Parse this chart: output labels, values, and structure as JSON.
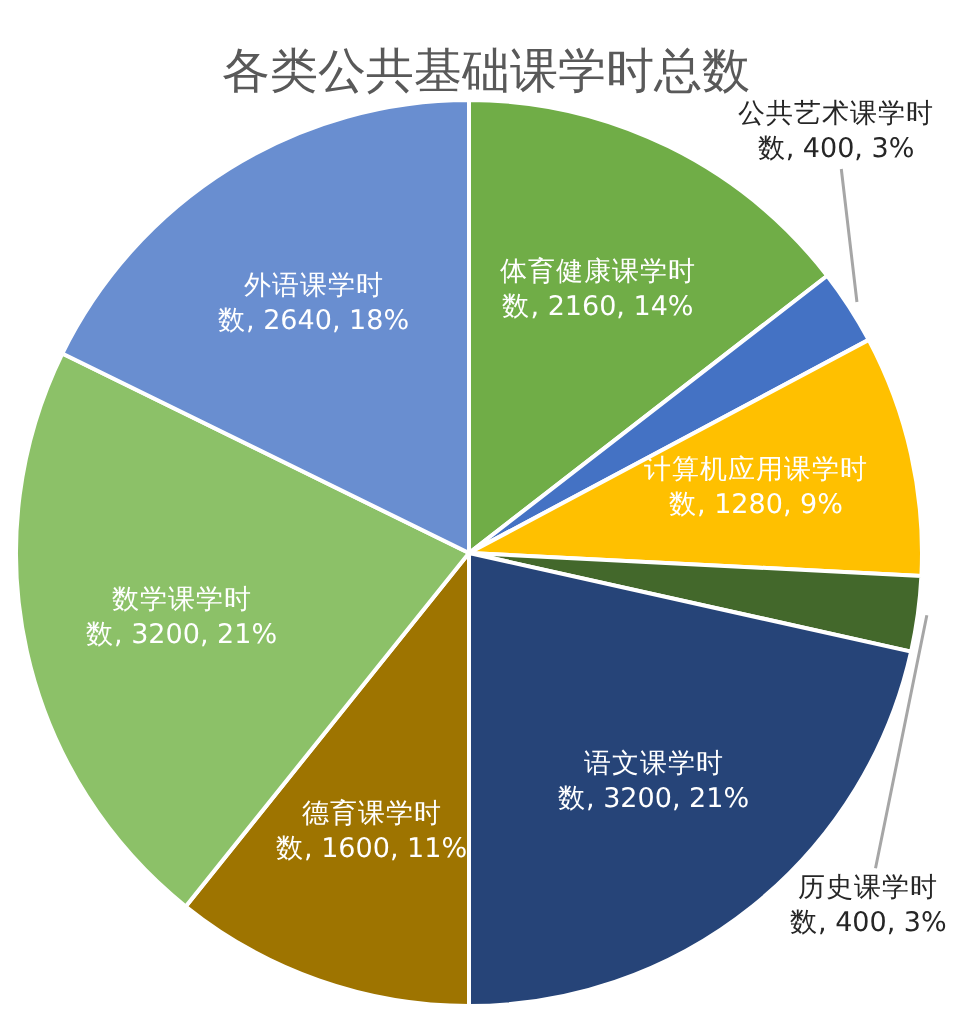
{
  "chart_data": {
    "type": "pie",
    "title": "各类公共基础课学时总数",
    "categories": [
      "体育健康课学时数",
      "公共艺术课学时数",
      "计算机应用课学时数",
      "历史课学时数",
      "语文课学时数",
      "德育课学时数",
      "数学课学时数",
      "外语课学时数"
    ],
    "values": [
      2160,
      400,
      1280,
      400,
      3200,
      1600,
      3200,
      2640
    ],
    "value_labels": [
      "2160, 14%",
      "400, 3%",
      "1280, 9%",
      "400, 3%",
      "3200, 21%",
      "1600, 11%",
      "3200, 21%",
      "2640, 18%"
    ],
    "colors": [
      "#70ad47",
      "#4472c4",
      "#ffc000",
      "#43682b",
      "#264478",
      "#9e7400",
      "#8cc168",
      "#698ed0"
    ]
  }
}
